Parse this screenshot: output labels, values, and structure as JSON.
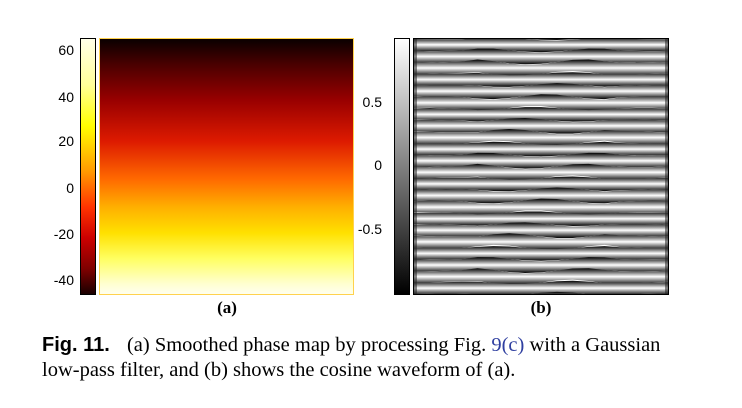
{
  "figure": {
    "panel_a": {
      "label": "(a)",
      "colorbar_ticks": [
        "60",
        "40",
        "20",
        "0",
        "-20",
        "-40"
      ],
      "colormap": "hot",
      "colorbar_range": [
        -45,
        65
      ]
    },
    "panel_b": {
      "label": "(b)",
      "colorbar_ticks": [
        "0.5",
        "0",
        "-0.5"
      ],
      "colormap": "gray",
      "colorbar_range": [
        -1,
        1
      ],
      "fringe_count": 22
    }
  },
  "caption": {
    "figure_label": "Fig. 11.",
    "text_before_link": "(a) Smoothed phase map by processing Fig.",
    "link_text": "9(c)",
    "text_after_link": "with a Gaussian low-pass filter, and (b) shows the cosine waveform of (a).",
    "link_color": "#2f3fa0"
  }
}
